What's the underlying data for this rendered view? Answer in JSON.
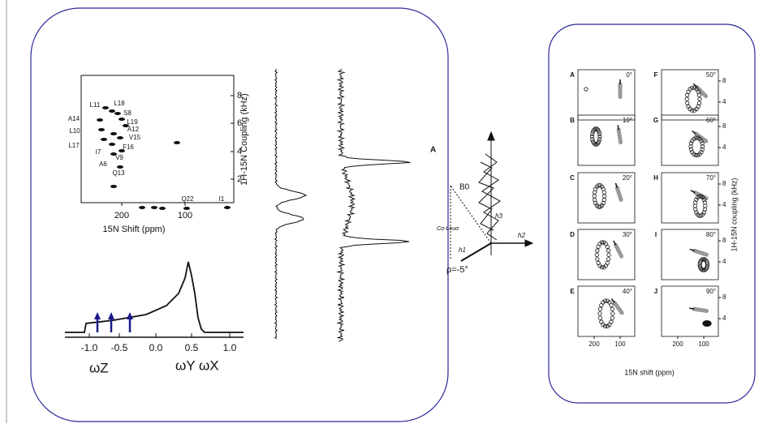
{
  "pisema": {
    "peaks": [
      "L11",
      "L18",
      "S8",
      "L19",
      "A14",
      "A12",
      "L10",
      "V15",
      "L17",
      "F16",
      "I7",
      "A6",
      "V9",
      "Q13",
      "Q22",
      "I1"
    ],
    "y_axis_label": "1H-15N Coupling (kHz)",
    "y_ticks": [
      "8",
      "6",
      "4",
      "2"
    ],
    "x_ticks": [
      "200",
      "100"
    ],
    "x_axis_label": "15N Shift (ppm)"
  },
  "powder": {
    "x_ticks": [
      "-1.0",
      "-0.5",
      "0.0",
      "0.5",
      "1.0"
    ],
    "omega_z": "ωZ",
    "omega_yx": "ωY ωX"
  },
  "helix": {
    "panel": "A",
    "b0": "B0",
    "residue": "Cα-Leuα",
    "h1": "h1",
    "h2": "h2",
    "h3": "h3",
    "rho": "ρ=-5°"
  },
  "wheels": {
    "panels": [
      {
        "letter": "A",
        "angle": "0°"
      },
      {
        "letter": "B",
        "angle": "10°"
      },
      {
        "letter": "C",
        "angle": "20°"
      },
      {
        "letter": "D",
        "angle": "30°"
      },
      {
        "letter": "E",
        "angle": "40°"
      },
      {
        "letter": "F",
        "angle": "50°"
      },
      {
        "letter": "G",
        "angle": "60°"
      },
      {
        "letter": "H",
        "angle": "70°"
      },
      {
        "letter": "I",
        "angle": "80°"
      },
      {
        "letter": "J",
        "angle": "90°"
      }
    ],
    "x_ticks": [
      "200",
      "100"
    ],
    "y_ticks": [
      "8",
      "4"
    ],
    "x_axis_label": "15N shift (ppm)",
    "y_axis_label": "1H-15N coupling (kHz)"
  }
}
